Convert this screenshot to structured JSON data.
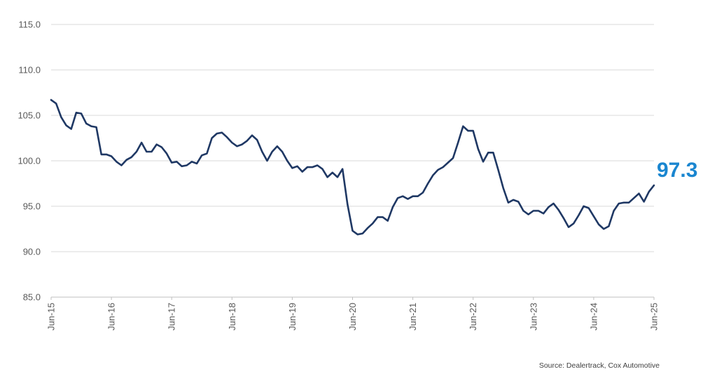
{
  "chart_data": {
    "type": "line",
    "title": "",
    "xlabel": "",
    "ylabel": "",
    "ylim": [
      85,
      115
    ],
    "y_ticks": [
      "115.0",
      "110.0",
      "105.0",
      "100.0",
      "95.0",
      "90.0",
      "85.0"
    ],
    "x_ticks": [
      "Jun-15",
      "Jun-16",
      "Jun-17",
      "Jun-18",
      "Jun-19",
      "Jun-20",
      "Jun-21",
      "Jun-22",
      "Jun-23",
      "Jun-24",
      "Jun-25"
    ],
    "grid": "horizontal",
    "line_color": "#1f3864",
    "highlight_color": "#1a86d0",
    "last_value_label": "97.3",
    "series": [
      {
        "x_start": "Jun-15",
        "frequency": "monthly",
        "values": [
          106.7,
          106.3,
          104.8,
          103.9,
          103.5,
          105.3,
          105.2,
          104.1,
          103.8,
          103.7,
          100.7,
          100.7,
          100.5,
          99.9,
          99.5,
          100.1,
          100.4,
          101.0,
          102.0,
          101.0,
          101.0,
          101.8,
          101.5,
          100.8,
          99.8,
          99.9,
          99.4,
          99.5,
          99.9,
          99.7,
          100.6,
          100.8,
          102.5,
          103.0,
          103.1,
          102.6,
          102.0,
          101.6,
          101.8,
          102.2,
          102.8,
          102.3,
          101.0,
          100.0,
          101.0,
          101.6,
          101.0,
          100.0,
          99.2,
          99.4,
          98.8,
          99.3,
          99.3,
          99.5,
          99.1,
          98.2,
          98.7,
          98.2,
          99.1,
          95.2,
          92.3,
          91.9,
          92.0,
          92.6,
          93.1,
          93.8,
          93.8,
          93.4,
          94.9,
          95.9,
          96.1,
          95.8,
          96.1,
          96.1,
          96.5,
          97.5,
          98.4,
          99.0,
          99.3,
          99.8,
          100.3,
          102.0,
          103.8,
          103.3,
          103.3,
          101.3,
          99.9,
          100.9,
          100.9,
          99.0,
          97.0,
          95.4,
          95.7,
          95.5,
          94.5,
          94.1,
          94.5,
          94.5,
          94.2,
          94.9,
          95.3,
          94.6,
          93.7,
          92.7,
          93.1,
          94.0,
          95.0,
          94.8,
          93.9,
          93.0,
          92.5,
          92.8,
          94.5,
          95.3,
          95.4,
          95.4,
          95.9,
          96.4,
          95.5,
          96.6,
          97.3
        ]
      }
    ]
  },
  "source_text": "Source: Dealertrack, Cox Automotive"
}
